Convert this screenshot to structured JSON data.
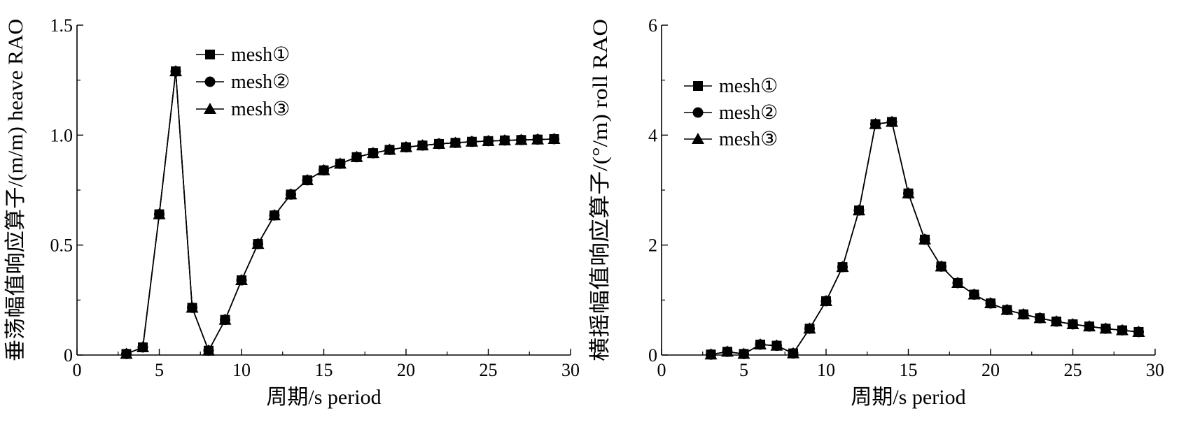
{
  "chart_data": [
    {
      "type": "line",
      "xlabel": "周期/s period",
      "ylabel": "垂荡幅值响应算子/(m/m) heave RAO",
      "xlim": [
        0,
        30
      ],
      "ylim": [
        0,
        1.5
      ],
      "xticks": [
        "0",
        "5",
        "10",
        "15",
        "20",
        "25",
        "30"
      ],
      "yticks": [
        "0",
        "0.5",
        "1.0",
        "1.5"
      ],
      "legend_position": "top-left",
      "x": [
        3,
        4,
        5,
        6,
        7,
        8,
        9,
        10,
        11,
        12,
        13,
        14,
        15,
        16,
        17,
        18,
        19,
        20,
        21,
        22,
        23,
        24,
        25,
        26,
        27,
        28,
        29
      ],
      "series": [
        {
          "name": "mesh①",
          "marker": "square",
          "values": [
            0.005,
            0.035,
            0.64,
            1.29,
            0.215,
            0.02,
            0.16,
            0.34,
            0.505,
            0.635,
            0.73,
            0.795,
            0.84,
            0.87,
            0.9,
            0.918,
            0.933,
            0.945,
            0.953,
            0.96,
            0.965,
            0.97,
            0.973,
            0.976,
            0.978,
            0.98,
            0.982
          ]
        },
        {
          "name": "mesh②",
          "marker": "circle",
          "values": [
            0.005,
            0.035,
            0.64,
            1.29,
            0.215,
            0.02,
            0.16,
            0.34,
            0.505,
            0.635,
            0.73,
            0.795,
            0.84,
            0.87,
            0.9,
            0.918,
            0.933,
            0.945,
            0.953,
            0.96,
            0.965,
            0.97,
            0.973,
            0.976,
            0.978,
            0.98,
            0.982
          ]
        },
        {
          "name": "mesh③",
          "marker": "triangle",
          "values": [
            0.005,
            0.035,
            0.64,
            1.29,
            0.215,
            0.02,
            0.16,
            0.34,
            0.505,
            0.635,
            0.73,
            0.795,
            0.84,
            0.87,
            0.9,
            0.918,
            0.933,
            0.945,
            0.953,
            0.96,
            0.965,
            0.97,
            0.973,
            0.976,
            0.978,
            0.98,
            0.982
          ]
        }
      ]
    },
    {
      "type": "line",
      "xlabel": "周期/s period",
      "ylabel": "横摇幅值响应算子/(°/m) roll RAO",
      "xlim": [
        0,
        30
      ],
      "ylim": [
        0,
        6
      ],
      "xticks": [
        "0",
        "5",
        "10",
        "15",
        "20",
        "25",
        "30"
      ],
      "yticks": [
        "0",
        "2",
        "4",
        "6"
      ],
      "legend_position": "top-left",
      "x": [
        3,
        4,
        5,
        6,
        7,
        8,
        9,
        10,
        11,
        12,
        13,
        14,
        15,
        16,
        17,
        18,
        19,
        20,
        21,
        22,
        23,
        24,
        25,
        26,
        27,
        28,
        29
      ],
      "series": [
        {
          "name": "mesh①",
          "marker": "square",
          "values": [
            0.01,
            0.06,
            0.02,
            0.19,
            0.17,
            0.03,
            0.48,
            0.98,
            1.6,
            2.63,
            4.2,
            4.24,
            2.94,
            2.1,
            1.61,
            1.31,
            1.1,
            0.94,
            0.82,
            0.74,
            0.67,
            0.61,
            0.56,
            0.52,
            0.48,
            0.45,
            0.42
          ]
        },
        {
          "name": "mesh②",
          "marker": "circle",
          "values": [
            0.01,
            0.06,
            0.02,
            0.19,
            0.17,
            0.03,
            0.48,
            0.98,
            1.6,
            2.63,
            4.2,
            4.24,
            2.94,
            2.1,
            1.61,
            1.31,
            1.1,
            0.94,
            0.82,
            0.74,
            0.67,
            0.61,
            0.56,
            0.52,
            0.48,
            0.45,
            0.42
          ]
        },
        {
          "name": "mesh③",
          "marker": "triangle",
          "values": [
            0.01,
            0.06,
            0.02,
            0.19,
            0.17,
            0.03,
            0.48,
            0.98,
            1.6,
            2.63,
            4.2,
            4.24,
            2.94,
            2.1,
            1.61,
            1.31,
            1.1,
            0.94,
            0.82,
            0.74,
            0.67,
            0.61,
            0.56,
            0.52,
            0.48,
            0.45,
            0.42
          ]
        }
      ]
    }
  ]
}
